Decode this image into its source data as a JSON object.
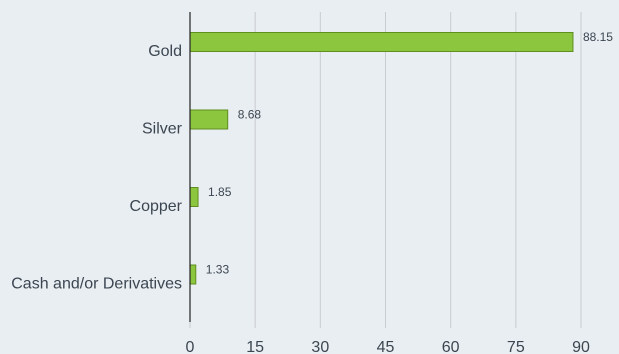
{
  "chart_data": {
    "type": "bar",
    "orientation": "horizontal",
    "categories": [
      "Gold",
      "Silver",
      "Copper",
      "Cash and/or Derivatives"
    ],
    "values": [
      88.15,
      8.68,
      1.85,
      1.33
    ],
    "data_labels": [
      "88.15",
      "8.68",
      "1.85",
      "1.33"
    ],
    "xlim": [
      0,
      90
    ],
    "x_ticks": [
      0,
      15,
      30,
      45,
      60,
      75,
      90
    ],
    "title": "",
    "xlabel": "",
    "ylabel": "",
    "grid": "vertical",
    "legend": "none",
    "colors": {
      "bar_fill": "#8cc63f",
      "bar_stroke": "#5e8f1f",
      "grid": "#c8ccd0",
      "axis": "#222222",
      "text": "#3c4650",
      "background": "#e9eef3"
    }
  }
}
